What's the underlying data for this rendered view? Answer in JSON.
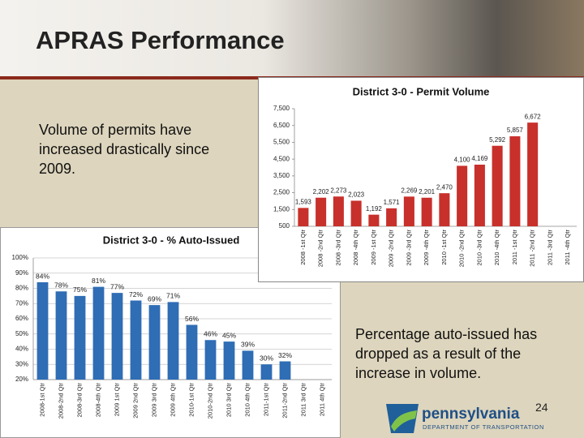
{
  "header": {
    "title": "APRAS Performance"
  },
  "body": {
    "text_volume": "Volume of permits have increased drastically since 2009.",
    "text_auto": "Percentage auto-issued has dropped as a result of the increase in volume.",
    "page_number": "24"
  },
  "logo": {
    "name": "pennsylvania",
    "department": "DEPARTMENT OF TRANSPORTATION"
  },
  "chart_data": [
    {
      "type": "bar",
      "title": "District 3-0 - Permit Volume",
      "color": "#c8302b",
      "grid": false,
      "categories": [
        "2008 -1st Qtr",
        "2008 -2nd Qtr",
        "2008 -3rd Qtr",
        "2008 -4th Qtr",
        "2009 -1st Qtr",
        "2009 -2nd Qtr",
        "2009 -3rd Qtr",
        "2009 -4th Qtr",
        "2010 -1st Qtr",
        "2010 -2nd Qtr",
        "2010 -3rd Qtr",
        "2010 -4th Qtr",
        "2011 -1st Qtr",
        "2011 -2nd Qtr",
        "2011 -3rd Qtr",
        "2011 -4th Qtr"
      ],
      "values": [
        1593,
        2202,
        2273,
        2023,
        1192,
        1571,
        2269,
        2201,
        2470,
        4100,
        4169,
        5292,
        5857,
        6672,
        null,
        null
      ],
      "value_labels": [
        "1,593",
        "2,202",
        "2,273",
        "2,023",
        "1,192",
        "1,571",
        "2,269",
        "2,201",
        "2,470",
        "4,100",
        "4,169",
        "5,292",
        "5,857",
        "6,672",
        null,
        null
      ],
      "ylim": [
        500,
        7500
      ],
      "yticks": [
        500,
        {
          "value": 1500,
          "label": "1,500"
        },
        {
          "value": 2500,
          "label": "2,500"
        },
        {
          "value": 3500,
          "label": "3,500"
        },
        {
          "value": 4500,
          "label": "4,500"
        },
        {
          "value": 5500,
          "label": "5,500"
        },
        {
          "value": 6500,
          "label": "6,500"
        },
        {
          "value": 7500,
          "label": "7,500"
        }
      ]
    },
    {
      "type": "bar",
      "title": "District 3-0 - % Auto-Issued",
      "color": "#2f6db5",
      "grid": true,
      "categories": [
        "2008-1st Qtr",
        "2008-2nd Qtr",
        "2008-3rd Qtr",
        "2008-4th Qtr",
        "2009 1st Qtr",
        "2009 2nd Qtr",
        "2009 3rd Qtr",
        "2009 4th Qtr",
        "2010-1st Qtr",
        "2010-2nd Qtr",
        "2010 3rd Qtr",
        "2010 4th Qtr",
        "2011-1st Qtr",
        "2011-2nd Qtr",
        "2011 3rd Qtr",
        "2011 4th Qtr"
      ],
      "values": [
        84,
        78,
        75,
        81,
        77,
        72,
        69,
        71,
        56,
        46,
        45,
        39,
        30,
        32,
        null,
        null
      ],
      "value_labels": [
        "84%",
        "78%",
        "75%",
        "81%",
        "77%",
        "72%",
        "69%",
        "71%",
        "56%",
        "46%",
        "45%",
        "39%",
        "30%",
        "32%",
        null,
        null
      ],
      "ylim": [
        20,
        100
      ],
      "yticks": [
        {
          "value": 20,
          "label": "20%"
        },
        {
          "value": 30,
          "label": "30%"
        },
        {
          "value": 40,
          "label": "40%"
        },
        {
          "value": 50,
          "label": "50%"
        },
        {
          "value": 60,
          "label": "60%"
        },
        {
          "value": 70,
          "label": "70%"
        },
        {
          "value": 80,
          "label": "80%"
        },
        {
          "value": 90,
          "label": "90%"
        },
        {
          "value": 100,
          "label": "100%"
        }
      ]
    }
  ]
}
